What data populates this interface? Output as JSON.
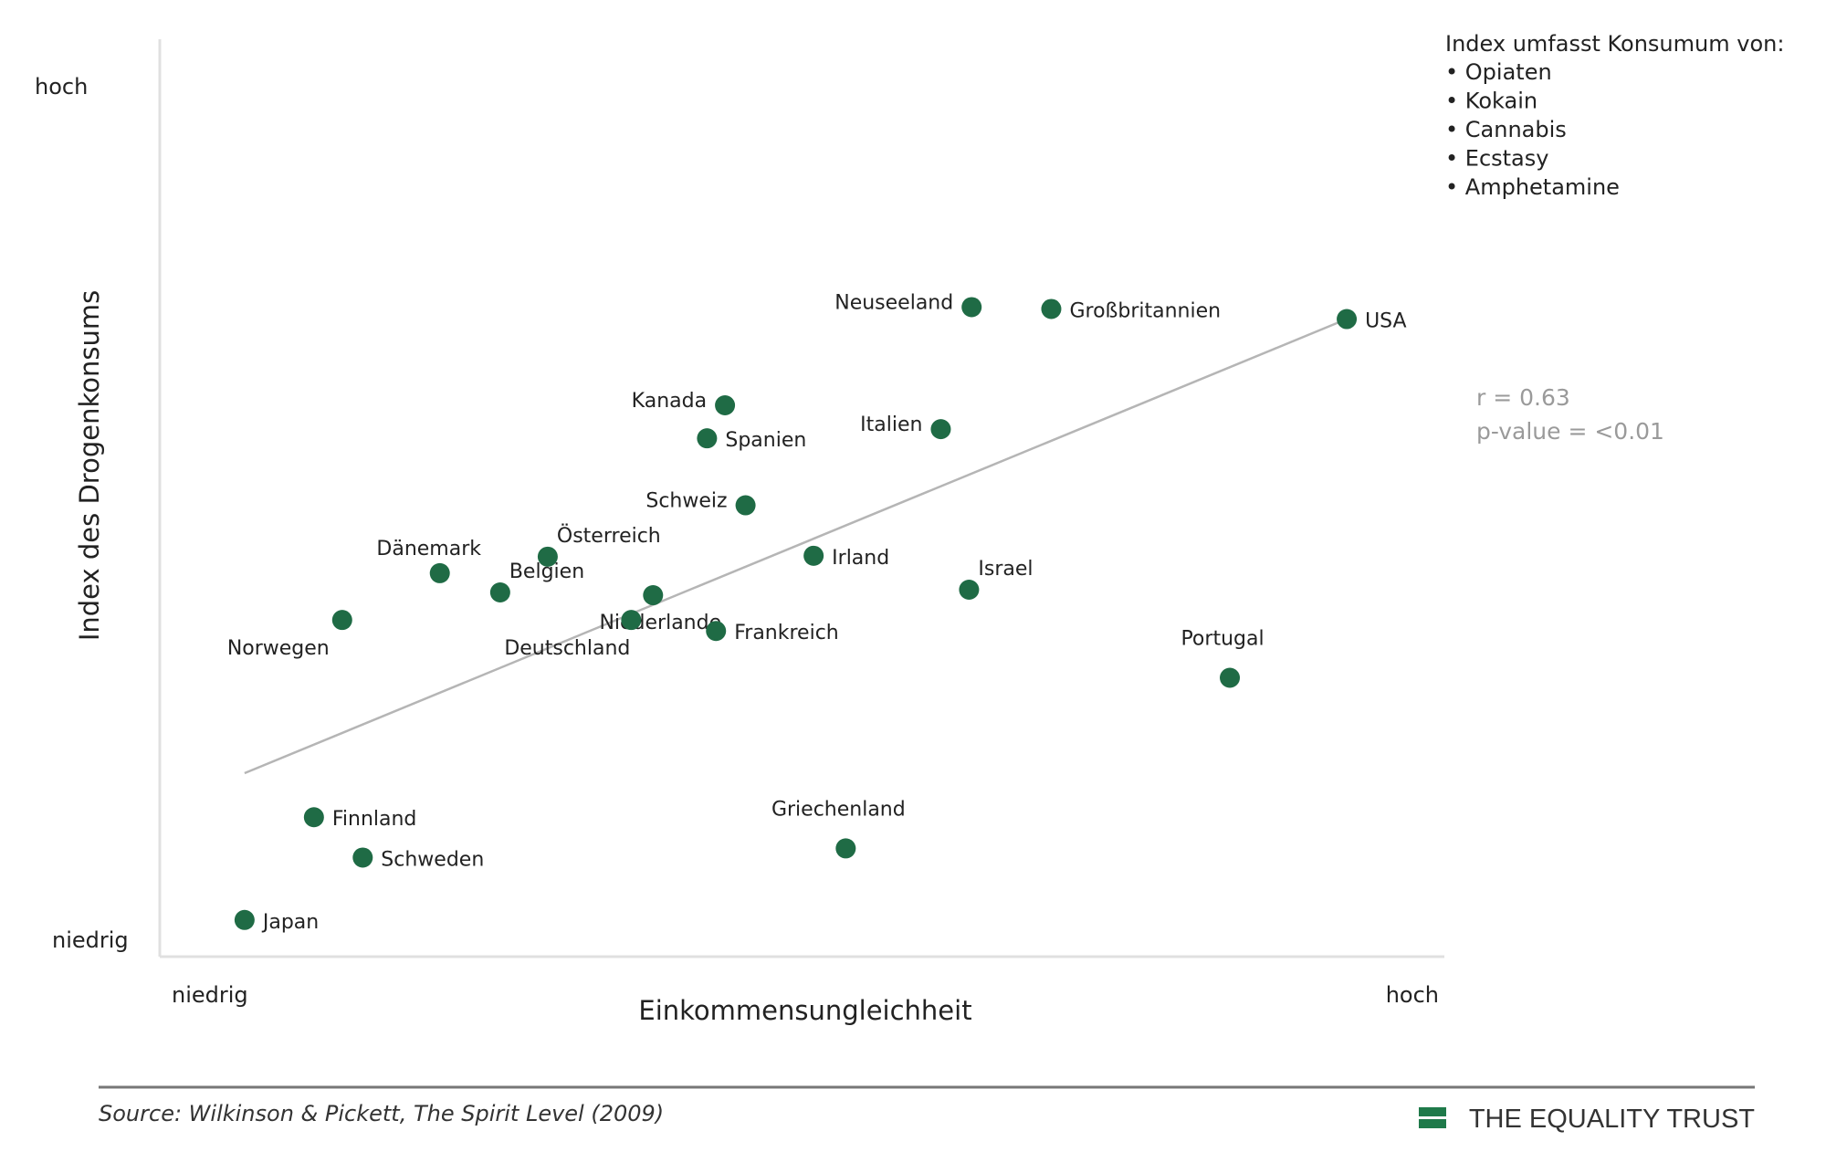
{
  "chart_data": {
    "type": "scatter",
    "title": "",
    "xlabel": "Einkommensungleichheit",
    "ylabel": "Index des Drogenkonsums",
    "x_low_label": "niedrig",
    "x_high_label": "hoch",
    "y_low_label": "niedrig",
    "y_high_label": "hoch",
    "xlim": [
      0,
      100
    ],
    "ylim": [
      0,
      100
    ],
    "grid": false,
    "points": [
      {
        "label": "Japan",
        "x": 6.6,
        "y": 4.0,
        "label_pos": "right"
      },
      {
        "label": "Finnland",
        "x": 12.0,
        "y": 15.2,
        "label_pos": "right"
      },
      {
        "label": "Schweden",
        "x": 15.8,
        "y": 10.8,
        "label_pos": "right"
      },
      {
        "label": "Norwegen",
        "x": 14.2,
        "y": 36.7,
        "label_pos": "below-left"
      },
      {
        "label": "Dänemark",
        "x": 21.8,
        "y": 41.8,
        "label_pos": "above-left"
      },
      {
        "label": "Belgien",
        "x": 26.5,
        "y": 39.7,
        "label_pos": "above-right"
      },
      {
        "label": "Österreich",
        "x": 30.2,
        "y": 43.6,
        "label_pos": "above-right"
      },
      {
        "label": "Niederlande",
        "x": 38.4,
        "y": 39.4,
        "label_pos": "below"
      },
      {
        "label": "Deutschland",
        "x": 36.7,
        "y": 36.7,
        "label_pos": "below-left"
      },
      {
        "label": "Frankreich",
        "x": 43.3,
        "y": 35.5,
        "label_pos": "right"
      },
      {
        "label": "Schweiz",
        "x": 45.6,
        "y": 49.2,
        "label_pos": "left"
      },
      {
        "label": "Kanada",
        "x": 44.0,
        "y": 60.1,
        "label_pos": "left"
      },
      {
        "label": "Spanien",
        "x": 42.6,
        "y": 56.5,
        "label_pos": "right"
      },
      {
        "label": "Irland",
        "x": 50.9,
        "y": 43.7,
        "label_pos": "right"
      },
      {
        "label": "Italien",
        "x": 60.8,
        "y": 57.5,
        "label_pos": "left"
      },
      {
        "label": "Israel",
        "x": 63.0,
        "y": 40.0,
        "label_pos": "above-right"
      },
      {
        "label": "Griechenland",
        "x": 53.4,
        "y": 11.8,
        "label_pos": "above"
      },
      {
        "label": "Neuseeland",
        "x": 63.2,
        "y": 70.8,
        "label_pos": "left"
      },
      {
        "label": "Großbritannien",
        "x": 69.4,
        "y": 70.6,
        "label_pos": "right"
      },
      {
        "label": "Portugal",
        "x": 83.3,
        "y": 30.4,
        "label_pos": "above"
      },
      {
        "label": "USA",
        "x": 92.4,
        "y": 69.5,
        "label_pos": "right"
      }
    ],
    "trend_line": {
      "x": [
        6.6,
        92.4
      ],
      "y": [
        20.0,
        69.5
      ]
    },
    "stats": {
      "r": "r = 0.63",
      "p": "p-value = <0.01"
    },
    "annotation": {
      "heading": "Index umfasst Konsumum von:",
      "items": [
        "Opiaten",
        "Kokain",
        "Cannabis",
        "Ecstasy",
        "Amphetamine"
      ]
    },
    "colors": {
      "marker": "#1f6b45",
      "trend": "#b5b5b5",
      "axis": "#e0e0e0",
      "footer_rule": "#777777",
      "brand": "#1f7a4a"
    }
  },
  "footer": {
    "source": "Source: Wilkinson & Pickett, The Spirit Level (2009)",
    "brand": "THE EQUALITY TRUST"
  }
}
